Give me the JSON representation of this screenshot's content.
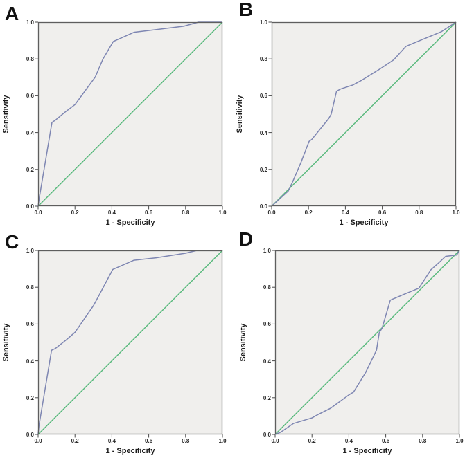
{
  "figure": {
    "panels": [
      {
        "label": "A",
        "xlabel": "1 - Specificity",
        "ylabel": "Sensitivity",
        "x_ticks": [
          "0.0",
          "0.2",
          "0.4",
          "0.6",
          "0.8",
          "1.0"
        ],
        "y_ticks": [
          "0.0",
          "0.2",
          "0.4",
          "0.6",
          "0.8",
          "1.0"
        ]
      },
      {
        "label": "B",
        "xlabel": "1 - Specificity",
        "ylabel": "Sensitivity",
        "x_ticks": [
          "0.0",
          "0.2",
          "0.4",
          "0.6",
          "0.8",
          "1.0"
        ],
        "y_ticks": [
          "0.0",
          "0.2",
          "0.4",
          "0.6",
          "0.8",
          "1.0"
        ]
      },
      {
        "label": "C",
        "xlabel": "1 - Specificity",
        "ylabel": "Sensitivity",
        "x_ticks": [
          "0.0",
          "0.2",
          "0.4",
          "0.6",
          "0.8",
          "1.0"
        ],
        "y_ticks": [
          "0.0",
          "0.2",
          "0.4",
          "0.6",
          "0.8",
          "1.0"
        ]
      },
      {
        "label": "D",
        "xlabel": "1 - Specificity",
        "ylabel": "Sensitivity",
        "x_ticks": [
          "0.0",
          "0.2",
          "0.4",
          "0.6",
          "0.8",
          "1.0"
        ],
        "y_ticks": [
          "0.0",
          "0.2",
          "0.4",
          "0.6",
          "0.8",
          "1.0"
        ]
      }
    ]
  },
  "colors": {
    "roc_line": "#7e86b2",
    "reference_line": "#55b87a",
    "plot_bg": "#f0efed",
    "frame": "#5e5e5e",
    "tick": "#4a4a4a"
  },
  "chart_data": [
    {
      "type": "line",
      "title": "A",
      "xlabel": "1 - Specificity",
      "ylabel": "Sensitivity",
      "xlim": [
        0,
        1
      ],
      "ylim": [
        0,
        1
      ],
      "grid": false,
      "legend": "none",
      "series": [
        {
          "name": "ROC curve",
          "points": [
            [
              0,
              0
            ],
            [
              0.008,
              0.055
            ],
            [
              0.075,
              0.455
            ],
            [
              0.093,
              0.467
            ],
            [
              0.145,
              0.51
            ],
            [
              0.2,
              0.552
            ],
            [
              0.31,
              0.702
            ],
            [
              0.352,
              0.8
            ],
            [
              0.408,
              0.895
            ],
            [
              0.52,
              0.945
            ],
            [
              0.63,
              0.958
            ],
            [
              0.79,
              0.978
            ],
            [
              0.87,
              1.0
            ],
            [
              1.0,
              1.0
            ]
          ]
        },
        {
          "name": "Reference line",
          "points": [
            [
              0,
              0
            ],
            [
              1,
              1
            ]
          ]
        }
      ]
    },
    {
      "type": "line",
      "title": "B",
      "xlabel": "1 - Specificity",
      "ylabel": "Sensitivity",
      "xlim": [
        0,
        1
      ],
      "ylim": [
        0,
        1
      ],
      "grid": false,
      "legend": "none",
      "series": [
        {
          "name": "ROC curve",
          "points": [
            [
              0,
              0
            ],
            [
              0.09,
              0.082
            ],
            [
              0.115,
              0.135
            ],
            [
              0.16,
              0.24
            ],
            [
              0.203,
              0.352
            ],
            [
              0.218,
              0.363
            ],
            [
              0.31,
              0.477
            ],
            [
              0.323,
              0.5
            ],
            [
              0.352,
              0.625
            ],
            [
              0.375,
              0.637
            ],
            [
              0.44,
              0.658
            ],
            [
              0.49,
              0.685
            ],
            [
              0.59,
              0.747
            ],
            [
              0.662,
              0.795
            ],
            [
              0.728,
              0.868
            ],
            [
              0.76,
              0.882
            ],
            [
              0.92,
              0.948
            ],
            [
              1.0,
              1.0
            ]
          ]
        },
        {
          "name": "Reference line",
          "points": [
            [
              0,
              0
            ],
            [
              1,
              1
            ]
          ]
        }
      ]
    },
    {
      "type": "line",
      "title": "C",
      "xlabel": "1 - Specificity",
      "ylabel": "Sensitivity",
      "xlim": [
        0,
        1
      ],
      "ylim": [
        0,
        1
      ],
      "grid": false,
      "legend": "none",
      "series": [
        {
          "name": "ROC curve",
          "points": [
            [
              0,
              0
            ],
            [
              0.005,
              0.05
            ],
            [
              0.073,
              0.458
            ],
            [
              0.093,
              0.467
            ],
            [
              0.15,
              0.512
            ],
            [
              0.2,
              0.555
            ],
            [
              0.3,
              0.7
            ],
            [
              0.33,
              0.755
            ],
            [
              0.405,
              0.897
            ],
            [
              0.52,
              0.947
            ],
            [
              0.64,
              0.96
            ],
            [
              0.8,
              0.985
            ],
            [
              0.862,
              1.0
            ],
            [
              1.0,
              1.0
            ]
          ]
        },
        {
          "name": "Reference line",
          "points": [
            [
              0,
              0
            ],
            [
              1,
              1
            ]
          ]
        }
      ]
    },
    {
      "type": "line",
      "title": "D",
      "xlabel": "1 - Specificity",
      "ylabel": "Sensitivity",
      "xlim": [
        0,
        1
      ],
      "ylim": [
        0,
        1
      ],
      "grid": false,
      "legend": "none",
      "series": [
        {
          "name": "ROC curve",
          "points": [
            [
              0,
              0
            ],
            [
              0.03,
              0.012
            ],
            [
              0.1,
              0.06
            ],
            [
              0.2,
              0.09
            ],
            [
              0.23,
              0.107
            ],
            [
              0.3,
              0.142
            ],
            [
              0.4,
              0.215
            ],
            [
              0.425,
              0.23
            ],
            [
              0.49,
              0.335
            ],
            [
              0.55,
              0.458
            ],
            [
              0.565,
              0.553
            ],
            [
              0.58,
              0.577
            ],
            [
              0.625,
              0.73
            ],
            [
              0.7,
              0.762
            ],
            [
              0.78,
              0.795
            ],
            [
              0.845,
              0.895
            ],
            [
              0.89,
              0.935
            ],
            [
              0.925,
              0.968
            ],
            [
              0.985,
              0.975
            ],
            [
              1.0,
              1.0
            ]
          ]
        },
        {
          "name": "Reference line",
          "points": [
            [
              0,
              0
            ],
            [
              1,
              1
            ]
          ]
        }
      ]
    }
  ]
}
